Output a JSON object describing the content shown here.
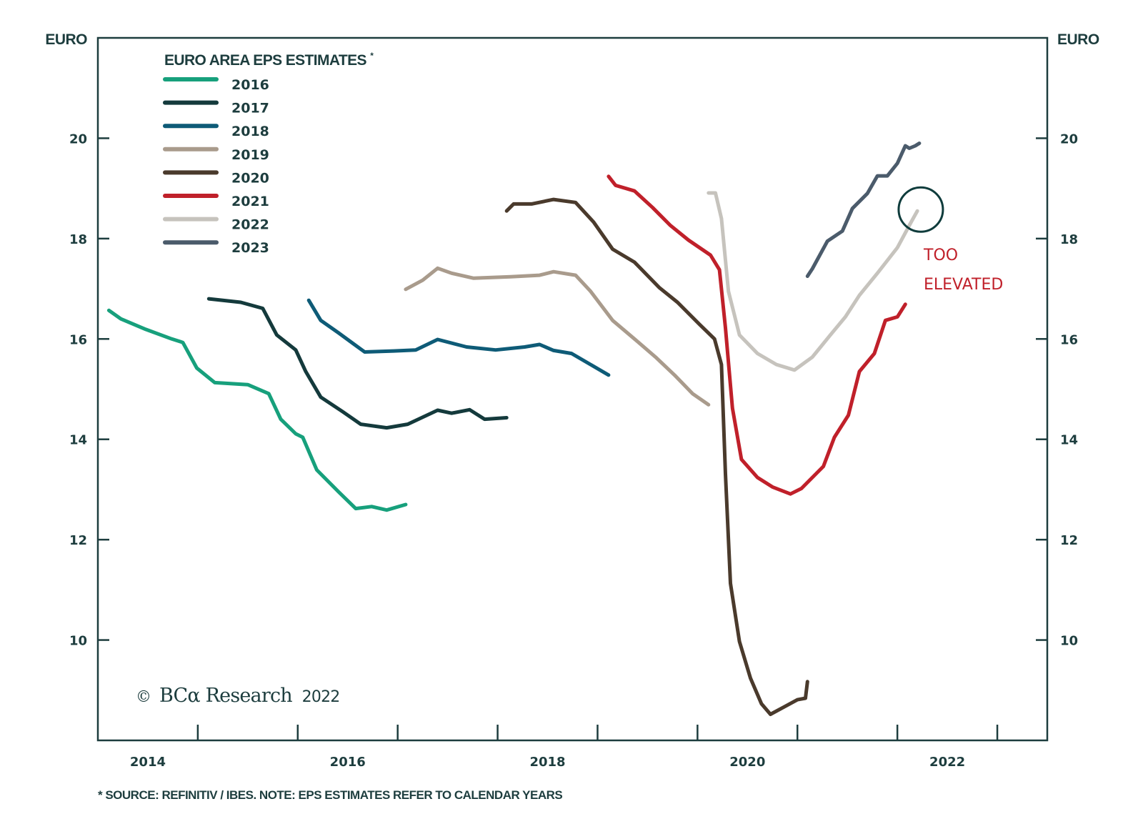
{
  "chart_data": {
    "type": "line",
    "title": "EURO AREA EPS ESTIMATES*",
    "title_footnote_marker": "*",
    "xlabel": "",
    "ylabel_left": "EURO",
    "ylabel_right": "EURO",
    "xlim": [
      2014.0,
      2023.5
    ],
    "ylim": [
      8.0,
      22.0
    ],
    "x_ticks": [
      2015,
      2016,
      2017,
      2018,
      2019,
      2020,
      2021,
      2022,
      2023
    ],
    "x_tick_labels": [
      {
        "label": "2014",
        "at": 2014.5
      },
      {
        "label": "2016",
        "at": 2016.5
      },
      {
        "label": "2018",
        "at": 2018.5
      },
      {
        "label": "2020",
        "at": 2020.5
      },
      {
        "label": "2022",
        "at": 2022.5
      }
    ],
    "y_ticks": [
      10,
      12,
      14,
      16,
      18,
      20
    ],
    "y_tick_labels": [
      "10",
      "12",
      "14",
      "16",
      "18",
      "20"
    ],
    "grid": false,
    "legend_position": "top-left",
    "series": [
      {
        "name": "2016",
        "color": "#17a07c",
        "x": [
          2014.11,
          2014.23,
          2014.48,
          2014.74,
          2014.85,
          2014.99,
          2015.17,
          2015.5,
          2015.71,
          2015.83,
          2015.98,
          2016.05,
          2016.19,
          2016.41,
          2016.58,
          2016.74,
          2016.89,
          2017.08
        ],
        "y": [
          16.57,
          16.4,
          16.19,
          16.0,
          15.93,
          15.42,
          15.13,
          15.09,
          14.91,
          14.4,
          14.11,
          14.04,
          13.39,
          12.95,
          12.62,
          12.66,
          12.59,
          12.7
        ]
      },
      {
        "name": "2017",
        "color": "#143a3c",
        "x": [
          2015.11,
          2015.43,
          2015.65,
          2015.79,
          2015.98,
          2016.08,
          2016.23,
          2016.45,
          2016.63,
          2016.89,
          2017.1,
          2017.4,
          2017.54,
          2017.72,
          2017.87,
          2018.09
        ],
        "y": [
          16.8,
          16.73,
          16.61,
          16.08,
          15.78,
          15.35,
          14.84,
          14.55,
          14.3,
          14.23,
          14.3,
          14.58,
          14.52,
          14.59,
          14.4,
          14.43
        ]
      },
      {
        "name": "2018",
        "color": "#0e5b77",
        "x": [
          2016.11,
          2016.23,
          2016.41,
          2016.56,
          2016.67,
          2016.96,
          2017.18,
          2017.4,
          2017.69,
          2017.98,
          2018.27,
          2018.42,
          2018.56,
          2018.74,
          2018.93,
          2019.11
        ],
        "y": [
          16.77,
          16.37,
          16.12,
          15.9,
          15.74,
          15.76,
          15.78,
          15.99,
          15.84,
          15.78,
          15.84,
          15.89,
          15.77,
          15.71,
          15.49,
          15.28
        ]
      },
      {
        "name": "2019",
        "color": "#a99b8c",
        "x": [
          2017.08,
          2017.25,
          2017.4,
          2017.54,
          2017.76,
          2018.13,
          2018.42,
          2018.56,
          2018.78,
          2018.93,
          2019.15,
          2019.37,
          2019.58,
          2019.77,
          2019.95,
          2020.11
        ],
        "y": [
          16.99,
          17.17,
          17.41,
          17.31,
          17.21,
          17.24,
          17.27,
          17.34,
          17.27,
          16.95,
          16.37,
          16.0,
          15.64,
          15.28,
          14.91,
          14.69
        ]
      },
      {
        "name": "2020",
        "color": "#4a3a2c",
        "x": [
          2018.09,
          2018.16,
          2018.34,
          2018.56,
          2018.78,
          2018.96,
          2019.15,
          2019.37,
          2019.62,
          2019.8,
          2020.02,
          2020.17,
          2020.24,
          2020.28,
          2020.33,
          2020.42,
          2020.53,
          2020.64,
          2020.73,
          2020.86,
          2021.0,
          2021.08,
          2021.1
        ],
        "y": [
          18.55,
          18.69,
          18.69,
          18.78,
          18.72,
          18.33,
          17.79,
          17.53,
          17.02,
          16.73,
          16.29,
          16.0,
          15.49,
          13.31,
          11.13,
          9.97,
          9.24,
          8.73,
          8.52,
          8.66,
          8.81,
          8.84,
          9.17
        ]
      },
      {
        "name": "2021",
        "color": "#c0202a",
        "x": [
          2019.11,
          2019.18,
          2019.37,
          2019.55,
          2019.73,
          2019.91,
          2020.13,
          2020.22,
          2020.28,
          2020.35,
          2020.44,
          2020.6,
          2020.75,
          2020.93,
          2021.04,
          2021.26,
          2021.37,
          2021.51,
          2021.62,
          2021.77,
          2021.88,
          2022.0,
          2022.08
        ],
        "y": [
          19.24,
          19.06,
          18.95,
          18.62,
          18.26,
          17.97,
          17.67,
          17.38,
          16.22,
          14.62,
          13.6,
          13.24,
          13.05,
          12.91,
          13.02,
          13.46,
          14.04,
          14.48,
          15.35,
          15.71,
          16.37,
          16.44,
          16.69
        ]
      },
      {
        "name": "2022",
        "color": "#c6c3bd",
        "x": [
          2020.11,
          2020.18,
          2020.24,
          2020.31,
          2020.42,
          2020.6,
          2020.79,
          2020.97,
          2021.15,
          2021.33,
          2021.48,
          2021.62,
          2021.8,
          2022.0,
          2022.13,
          2022.2
        ],
        "y": [
          18.91,
          18.91,
          18.4,
          16.95,
          16.08,
          15.71,
          15.49,
          15.38,
          15.64,
          16.08,
          16.44,
          16.87,
          17.31,
          17.82,
          18.3,
          18.55
        ]
      },
      {
        "name": "2023",
        "color": "#4b5b6b",
        "x": [
          2021.1,
          2021.15,
          2021.3,
          2021.45,
          2021.55,
          2021.7,
          2021.8,
          2021.9,
          2022.0,
          2022.08,
          2022.12,
          2022.18,
          2022.22
        ],
        "y": [
          17.25,
          17.4,
          17.95,
          18.15,
          18.6,
          18.9,
          19.25,
          19.25,
          19.5,
          19.85,
          19.8,
          19.85,
          19.9
        ]
      }
    ],
    "annotations": [
      {
        "type": "circle",
        "target_series": "2022",
        "at_x": 2022.22,
        "at_y": 18.55,
        "color": "#0f3c3c"
      },
      {
        "type": "text",
        "lines": [
          "TOO",
          "ELEVATED"
        ],
        "color": "#c0202a"
      }
    ]
  },
  "brand": {
    "symbol": "©",
    "name": "BCα Research",
    "year": "2022"
  },
  "footnote": "* SOURCE: REFINITIV / IBES. NOTE: EPS ESTIMATES REFER TO CALENDAR YEARS"
}
